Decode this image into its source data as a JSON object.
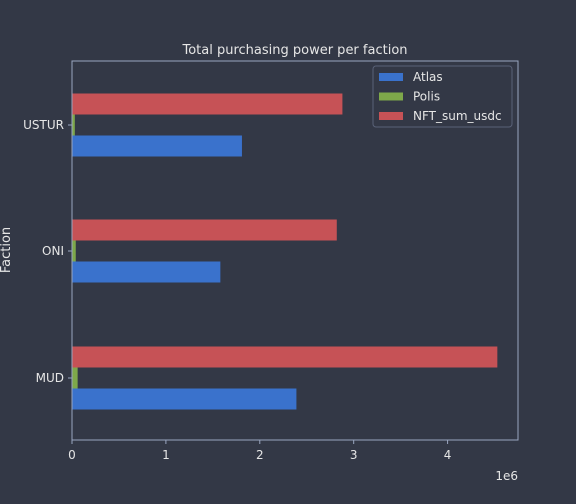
{
  "colors": {
    "background": "#333846",
    "axis": "#9aa6c0",
    "text": "#e6e6e6",
    "atlas": "#3a72cc",
    "polis": "#7ea84a",
    "nft": "#c65256"
  },
  "chart_data": {
    "type": "bar",
    "orientation": "horizontal",
    "title": "Total purchasing power per faction",
    "ylabel": "Faction",
    "xlabel": "",
    "x_multiplier_label": "1e6",
    "categories": [
      "MUD",
      "ONI",
      "USTUR"
    ],
    "xlim": [
      0,
      4.75
    ],
    "x_ticks": [
      0,
      1,
      2,
      3,
      4
    ],
    "series": [
      {
        "name": "Atlas",
        "values": [
          2.39,
          1.58,
          1.81
        ],
        "color_key": "atlas"
      },
      {
        "name": "Polis",
        "values": [
          0.06,
          0.04,
          0.03
        ],
        "color_key": "polis"
      },
      {
        "name": "NFT_sum_usdc",
        "values": [
          4.53,
          2.82,
          2.88
        ],
        "color_key": "nft"
      }
    ],
    "legend_position": "top-right",
    "grid": false
  }
}
